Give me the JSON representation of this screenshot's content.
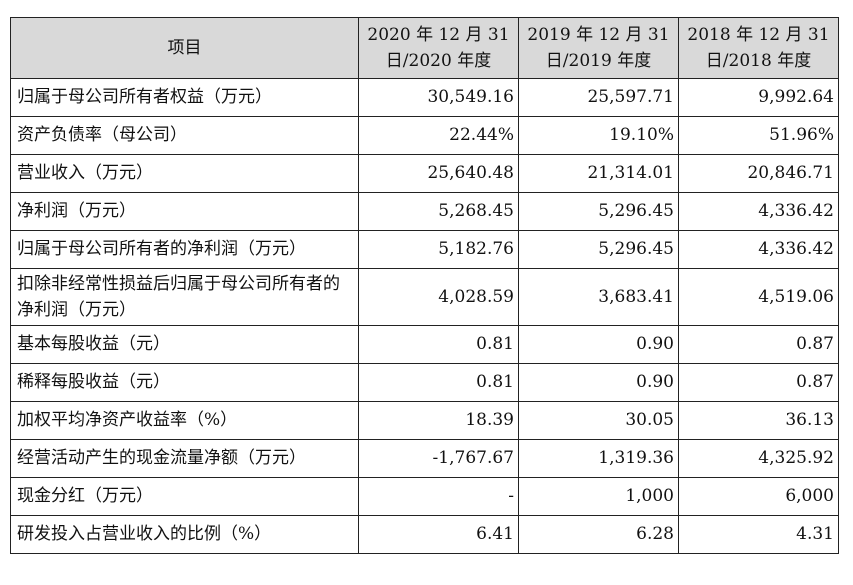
{
  "table": {
    "headers": [
      {
        "line1": "项目",
        "line2": ""
      },
      {
        "line1": "2020 年 12 月 31",
        "line2": "日/2020 年度"
      },
      {
        "line1": "2019 年 12 月 31",
        "line2": "日/2019 年度"
      },
      {
        "line1": "2018 年 12 月 31",
        "line2": "日/2018 年度"
      }
    ],
    "rows": [
      {
        "label": "归属于母公司所有者权益（万元）",
        "values": [
          "30,549.16",
          "25,597.71",
          "9,992.64"
        ]
      },
      {
        "label": "资产负债率（母公司）",
        "values": [
          "22.44%",
          "19.10%",
          "51.96%"
        ]
      },
      {
        "label": "营业收入（万元）",
        "values": [
          "25,640.48",
          "21,314.01",
          "20,846.71"
        ]
      },
      {
        "label": "净利润（万元）",
        "values": [
          "5,268.45",
          "5,296.45",
          "4,336.42"
        ]
      },
      {
        "label": "归属于母公司所有者的净利润（万元）",
        "values": [
          "5,182.76",
          "5,296.45",
          "4,336.42"
        ]
      },
      {
        "label": "扣除非经常性损益后归属于母公司所有者的净利润（万元）",
        "values": [
          "4,028.59",
          "3,683.41",
          "4,519.06"
        ]
      },
      {
        "label": "基本每股收益（元）",
        "values": [
          "0.81",
          "0.90",
          "0.87"
        ]
      },
      {
        "label": "稀释每股收益（元）",
        "values": [
          "0.81",
          "0.90",
          "0.87"
        ]
      },
      {
        "label": "加权平均净资产收益率（%）",
        "values": [
          "18.39",
          "30.05",
          "36.13"
        ]
      },
      {
        "label": "经营活动产生的现金流量净额（万元）",
        "values": [
          "-1,767.67",
          "1,319.36",
          "4,325.92"
        ]
      },
      {
        "label": "现金分红（万元）",
        "values": [
          "-",
          "1,000",
          "6,000"
        ]
      },
      {
        "label": "研发投入占营业收入的比例（%）",
        "values": [
          "6.41",
          "6.28",
          "4.31"
        ]
      }
    ]
  }
}
